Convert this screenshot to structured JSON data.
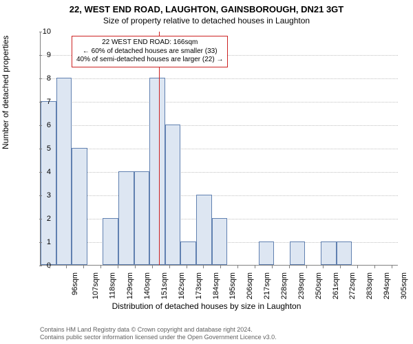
{
  "title_main": "22, WEST END ROAD, LAUGHTON, GAINSBOROUGH, DN21 3GT",
  "title_sub": "Size of property relative to detached houses in Laughton",
  "ylabel": "Number of detached properties",
  "xlabel": "Distribution of detached houses by size in Laughton",
  "chart": {
    "type": "histogram",
    "ylim": [
      0,
      10
    ],
    "ytick_step": 1,
    "x_min": 90,
    "x_max": 320,
    "x_tick_start": 96,
    "x_tick_step": 11,
    "x_tick_count": 21,
    "x_tick_suffix": "sqm",
    "bar_color": "#dde6f2",
    "bar_border": "#6080b0",
    "grid_color": "#c0c0c0",
    "axis_color": "#808080",
    "background": "#ffffff",
    "bin_start": 90,
    "bin_width": 10,
    "values": [
      7,
      8,
      5,
      0,
      2,
      4,
      4,
      8,
      6,
      1,
      3,
      2,
      0,
      0,
      1,
      0,
      1,
      0,
      1,
      1,
      0,
      0,
      0
    ],
    "ref_value": 166,
    "ref_color": "#cc2020"
  },
  "annotation": {
    "line1": "22 WEST END ROAD: 166sqm",
    "line2": "← 60% of detached houses are smaller (33)",
    "line3": "40% of semi-detached houses are larger (22) →",
    "border_color": "#cc2020",
    "background": "#ffffff",
    "fontsize": 10
  },
  "footer": {
    "line1": "Contains HM Land Registry data © Crown copyright and database right 2024.",
    "line2": "Contains public sector information licensed under the Open Government Licence v3.0."
  }
}
